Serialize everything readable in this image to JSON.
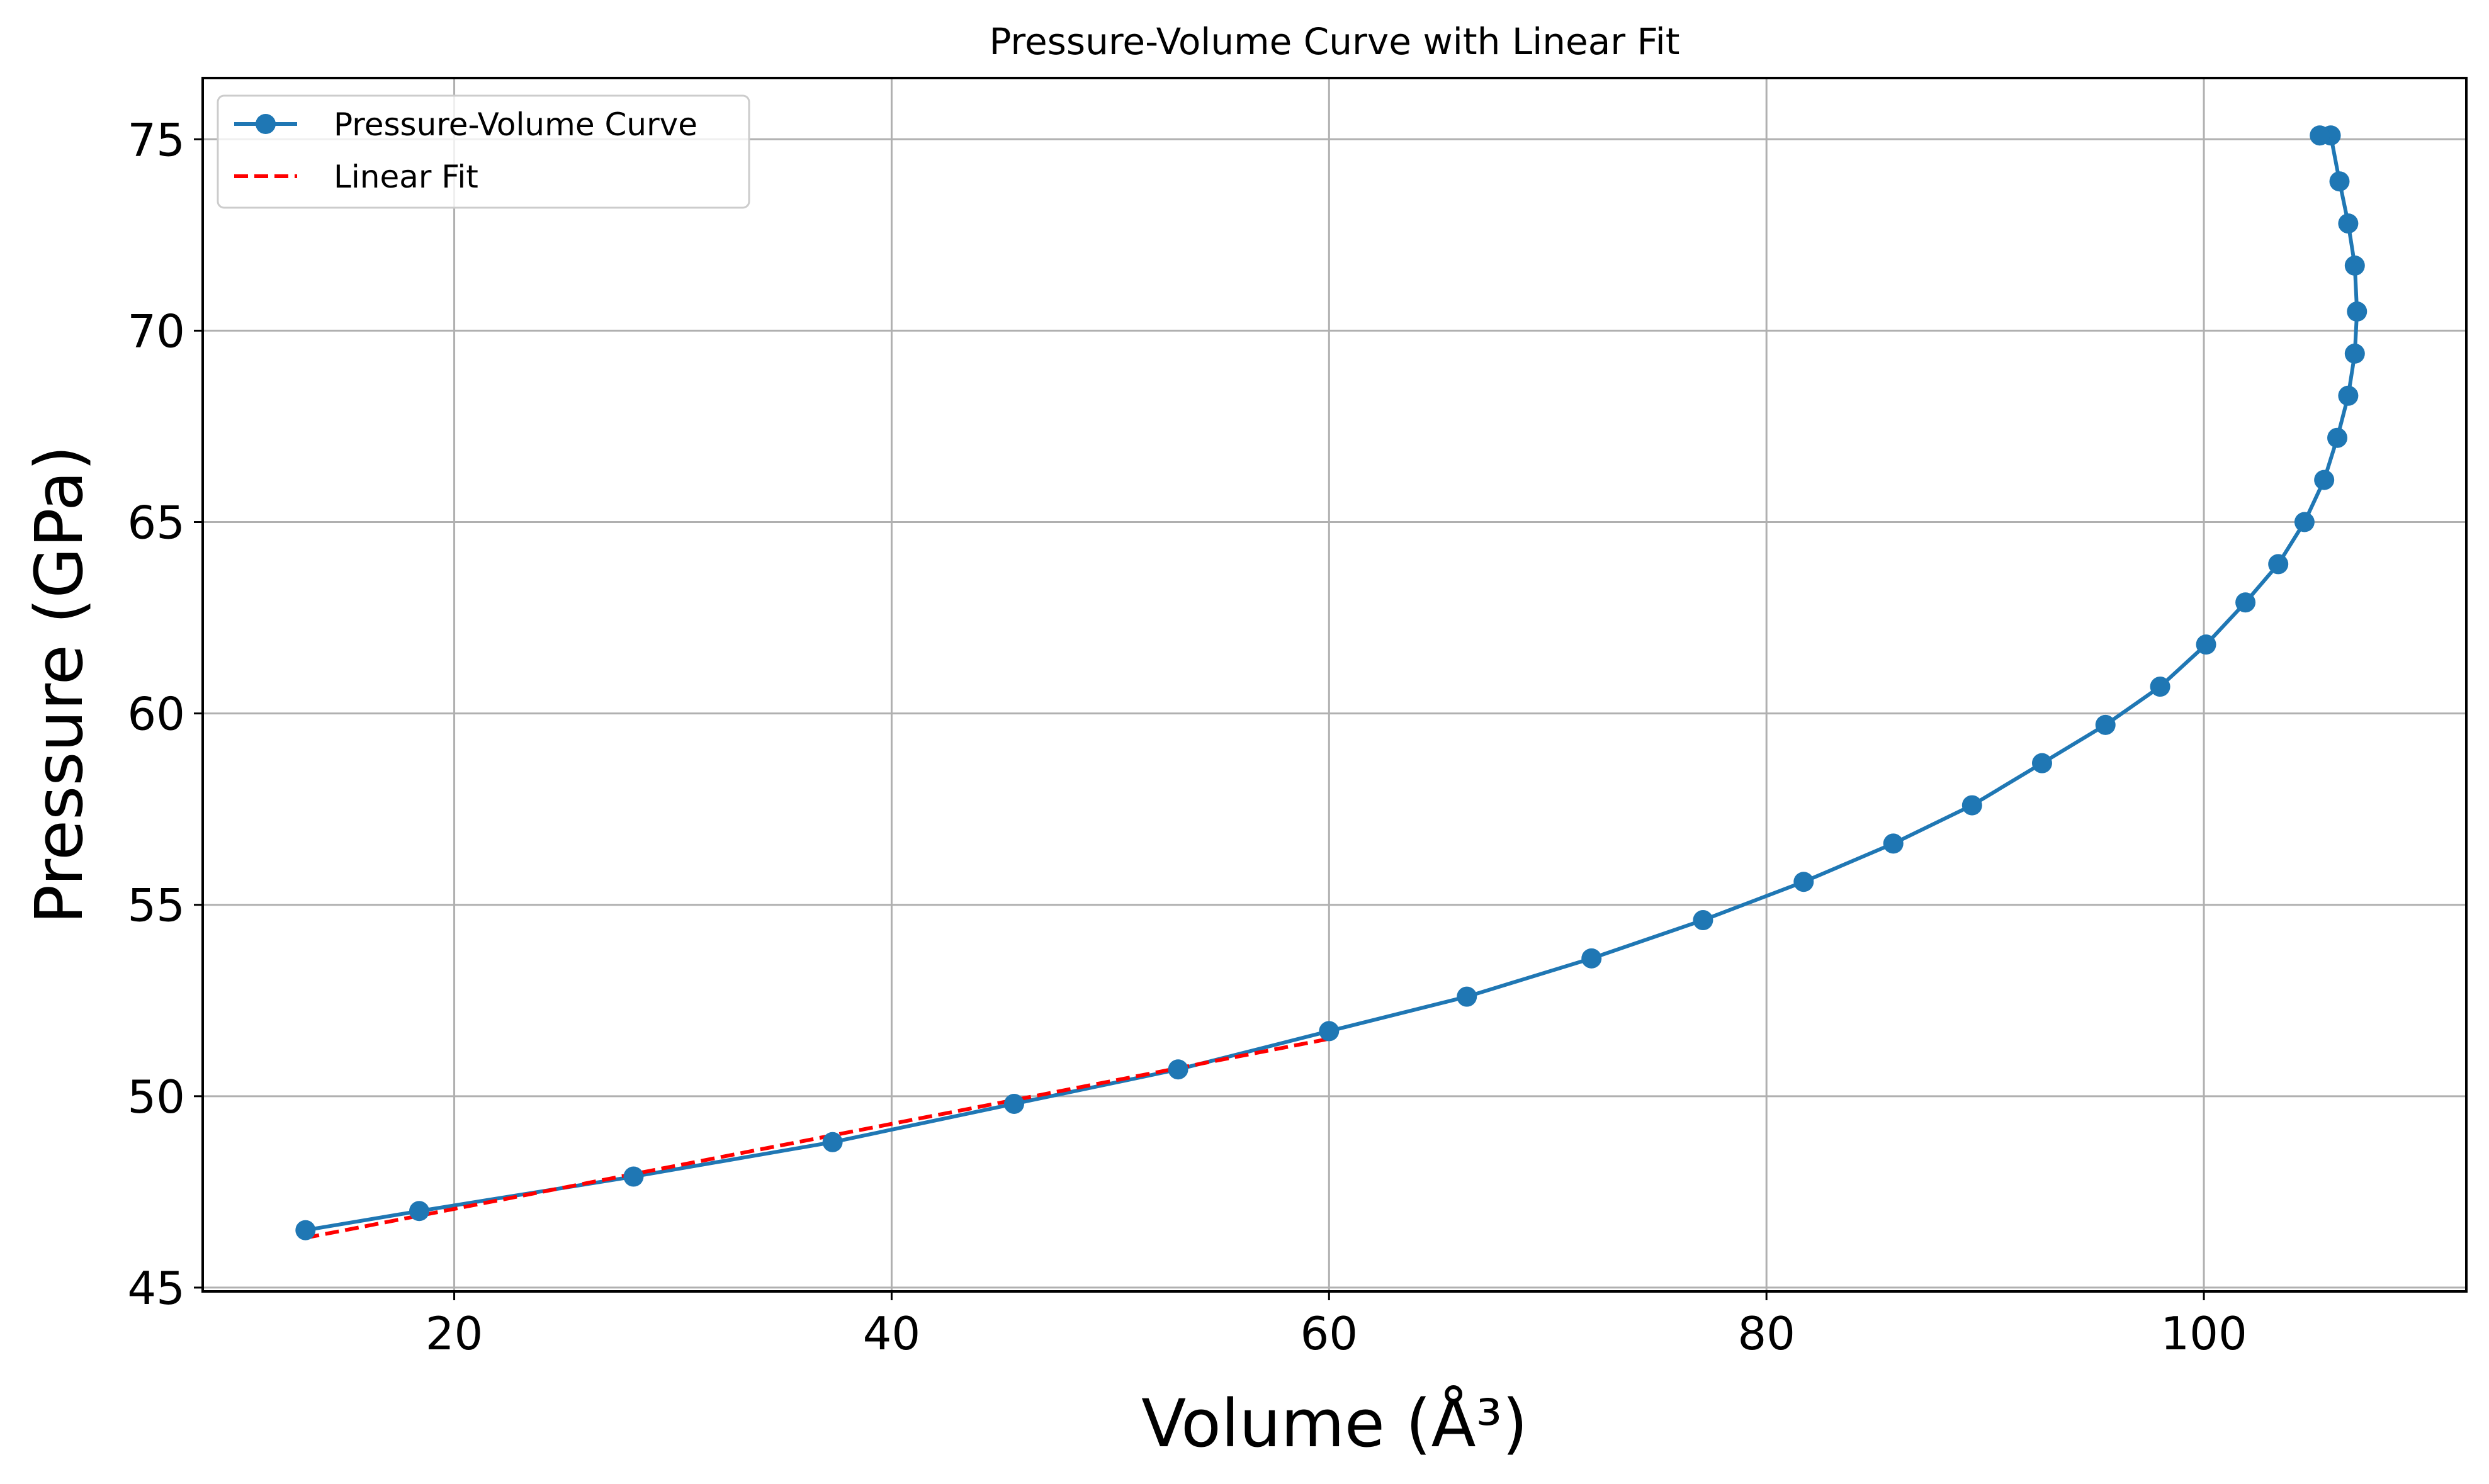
{
  "chart_data": {
    "type": "line",
    "title": "Pressure-Volume Curve with Linear Fit",
    "xlabel": "Volume (Å³)",
    "ylabel": "Pressure (GPa)",
    "xlim": [
      8.5,
      112
    ],
    "ylim": [
      44.9,
      76.6
    ],
    "xticks": [
      20,
      40,
      60,
      80,
      100
    ],
    "yticks": [
      45,
      50,
      55,
      60,
      65,
      70,
      75
    ],
    "grid": true,
    "legend_position": "top-left",
    "series": [
      {
        "name": "Pressure-Volume Curve",
        "color": "#1f77b4",
        "style": "solid-with-circle-markers",
        "x": [
          13.2,
          18.4,
          28.2,
          37.3,
          45.6,
          53.1,
          60.0,
          66.3,
          72.0,
          77.1,
          81.7,
          85.8,
          89.4,
          92.6,
          95.5,
          98.0,
          100.1,
          101.9,
          103.4,
          104.6,
          105.5,
          106.1,
          106.6,
          106.9,
          107.0,
          106.9,
          106.6,
          106.2,
          105.8,
          105.3
        ],
        "y": [
          46.5,
          47.0,
          47.9,
          48.8,
          49.8,
          50.7,
          51.7,
          52.6,
          53.6,
          54.6,
          55.6,
          56.6,
          57.6,
          58.7,
          59.7,
          60.7,
          61.8,
          62.9,
          63.9,
          65.0,
          66.1,
          67.2,
          68.3,
          69.4,
          70.5,
          71.7,
          72.8,
          73.9,
          75.1,
          75.1
        ]
      },
      {
        "name": "Linear Fit",
        "color": "#ff0000",
        "style": "dashed",
        "x": [
          13.2,
          60.0
        ],
        "y": [
          46.3,
          51.5
        ]
      }
    ]
  }
}
